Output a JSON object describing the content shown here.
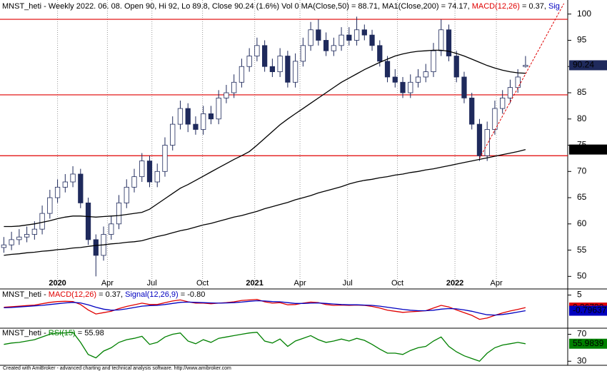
{
  "chart_data": [
    {
      "type": "candlestick",
      "title_parts": [
        {
          "text": "MNST_heti - Weekly 2022. 06. 08. Open 90, Hi 92, Lo 89.8, Close 90.24 (1.6%) Vol 0 MA(Close,50) = 88.71, MA1(Close,200) = 74.17, ",
          "color": "#000000"
        },
        {
          "text": "MACD(12,26)",
          "color": "#e00000"
        },
        {
          "text": " = 0.37, ",
          "color": "#000000"
        },
        {
          "text": "Sig",
          "color": "#0000c0"
        }
      ],
      "open": [
        55.5,
        56,
        57,
        57.5,
        58,
        59,
        62,
        65,
        67,
        68,
        69.5,
        64,
        57,
        54,
        58,
        60,
        64,
        67,
        69,
        72,
        68,
        70,
        75,
        79,
        82,
        79,
        78,
        81,
        80,
        84,
        85,
        87,
        90,
        92,
        94,
        90,
        89,
        92,
        87,
        91,
        94,
        97,
        95,
        93,
        94,
        96,
        95,
        97,
        96,
        94,
        91,
        88,
        87,
        85,
        87,
        88,
        89,
        93,
        97,
        92,
        88,
        84,
        79,
        73,
        78,
        82,
        84,
        86,
        90
      ],
      "high": [
        57.5,
        58.5,
        59,
        59.5,
        60.5,
        63.5,
        66.5,
        68.5,
        69.5,
        71,
        70.5,
        65,
        58,
        59.5,
        61.5,
        65.5,
        68.5,
        70.5,
        73.5,
        73,
        71.5,
        76.5,
        80.5,
        83.5,
        83,
        80.5,
        82.5,
        82.5,
        85.5,
        86.5,
        88.5,
        91.5,
        93.5,
        95.5,
        95,
        91.5,
        93.5,
        93,
        92.5,
        95.5,
        98.5,
        99,
        96.5,
        95.5,
        97.5,
        97.5,
        99.5,
        98,
        97,
        95,
        92,
        89.5,
        88,
        88.5,
        89.5,
        90.5,
        94.5,
        99,
        98,
        93,
        89,
        85,
        80,
        79.5,
        83.5,
        85.5,
        87.5,
        89.5,
        92
      ],
      "low": [
        54.5,
        55,
        56,
        56.5,
        57,
        58,
        61,
        64,
        66,
        67,
        63,
        56,
        50,
        53,
        57,
        59,
        63,
        66,
        68,
        67,
        67,
        69,
        74,
        78,
        77.5,
        77,
        77,
        79,
        79,
        83,
        84,
        86,
        89,
        91,
        89,
        88,
        88,
        86,
        86,
        90,
        93,
        94,
        92,
        92,
        93,
        94,
        94,
        95,
        93,
        90,
        87,
        86,
        84,
        84,
        86,
        87,
        88,
        92,
        91,
        87,
        83,
        78,
        72,
        72,
        77,
        81,
        83,
        85,
        89.8
      ],
      "close": [
        56,
        57,
        57.5,
        58,
        59,
        62,
        65,
        67,
        68,
        69.5,
        64,
        57,
        54,
        58,
        60,
        64,
        67,
        69,
        72,
        68,
        70,
        75,
        79,
        82,
        79,
        78,
        81,
        80,
        84,
        85,
        87,
        90,
        92,
        94,
        90,
        89,
        92,
        87,
        91,
        94,
        97,
        95,
        93,
        94,
        96,
        95,
        97,
        96,
        94,
        91,
        88,
        87,
        85,
        87,
        88,
        89,
        93,
        97,
        92,
        88,
        84,
        79,
        73,
        78,
        82,
        84,
        86,
        88,
        90.24
      ],
      "up_color": "#ffffff",
      "down_color": "#1f2a5c",
      "edge_color": "#1f2a5c",
      "series": [
        {
          "color": "#000000",
          "values": [
            59.5,
            59.5,
            59.6,
            59.8,
            60,
            60.3,
            60.6,
            61,
            61.3,
            61.5,
            61.5,
            61.4,
            61.3,
            61.4,
            61.5,
            61.6,
            61.8,
            62,
            62.2,
            62.8,
            63.8,
            64.8,
            65.8,
            66.8,
            67.5,
            68.3,
            69.1,
            69.9,
            70.7,
            71.5,
            72.3,
            73,
            73.8,
            75,
            76.3,
            77.6,
            78.9,
            80,
            81,
            82,
            83,
            84,
            85,
            86,
            87,
            87.8,
            88.6,
            89.4,
            90.1,
            90.8,
            91.4,
            92,
            92.4,
            92.7,
            92.9,
            93,
            93.1,
            93.1,
            92.9,
            92.5,
            92,
            91.4,
            90.8,
            90.2,
            89.7,
            89.3,
            89,
            88.8,
            88.71
          ]
        },
        {
          "color": "#000000",
          "values": [
            54,
            54.2,
            54.3,
            54.5,
            54.6,
            54.8,
            54.9,
            55.1,
            55.2,
            55.4,
            55.5,
            55.7,
            55.9,
            56,
            56.2,
            56.3,
            56.5,
            56.6,
            56.8,
            57.2,
            57.6,
            57.9,
            58.3,
            58.7,
            59,
            59.4,
            59.8,
            60.1,
            60.5,
            60.9,
            61.3,
            61.6,
            62,
            62.4,
            62.9,
            63.3,
            63.7,
            64.1,
            64.6,
            65,
            65.4,
            65.9,
            66.3,
            66.7,
            67.1,
            67.6,
            68,
            68.3,
            68.5,
            68.8,
            69,
            69.3,
            69.5,
            69.8,
            70,
            70.3,
            70.5,
            70.8,
            71.1,
            71.4,
            71.7,
            72,
            72.3,
            72.6,
            72.9,
            73.2,
            73.5,
            73.8,
            74.1731
          ]
        }
      ],
      "hlines": [
        {
          "value": 99,
          "color": "#e00000"
        },
        {
          "value": 84.6,
          "color": "#e00000"
        },
        {
          "value": 73,
          "color": "#e00000"
        }
      ],
      "trendline": {
        "x": [
          62,
          73
        ],
        "values": [
          72.5,
          102
        ],
        "color": "#e00000"
      },
      "xlim": [
        -0.5,
        73.5
      ],
      "xticks": [
        {
          "value": 7,
          "label": "2020"
        },
        {
          "value": 13.5,
          "label": "Apr"
        },
        {
          "value": 19.3,
          "label": "Jul"
        },
        {
          "value": 25.9,
          "label": "Oct"
        },
        {
          "value": 32.7,
          "label": "2021"
        },
        {
          "value": 38.6,
          "label": "Apr"
        },
        {
          "value": 44.8,
          "label": "Jul"
        },
        {
          "value": 51.3,
          "label": "Oct"
        },
        {
          "value": 58.8,
          "label": "2022"
        },
        {
          "value": 64.2,
          "label": "Apr"
        }
      ],
      "ylim": [
        47.6,
        102
      ],
      "yticks": [
        50,
        55,
        60,
        65,
        70,
        75,
        80,
        85,
        90,
        95,
        100
      ]
    },
    {
      "type": "line",
      "title_parts": [
        {
          "text": "MNST_heti - ",
          "color": "#000000"
        },
        {
          "text": "MACD(12,26)",
          "color": "#e00000"
        },
        {
          "text": " = 0.37, ",
          "color": "#000000"
        },
        {
          "text": "Signal(12,26,9)",
          "color": "#0000c0"
        },
        {
          "text": " = -0.80",
          "color": "#000000"
        }
      ],
      "series": [
        {
          "color": "#e00000",
          "end_label": "0.36730",
          "values": [
            0.5,
            0.7,
            0.9,
            1.1,
            1.3,
            1.8,
            2.3,
            2.6,
            2.7,
            2.6,
            1.5,
            -0.5,
            -2,
            -1.5,
            -1,
            0,
            0.8,
            1.4,
            2,
            1.5,
            1.5,
            2.2,
            2.8,
            3.2,
            2.5,
            2,
            2,
            1.8,
            2,
            2.2,
            2.5,
            3,
            3.2,
            3.4,
            2.5,
            2,
            2.2,
            1.4,
            1.5,
            2,
            2.4,
            2.2,
            1.5,
            1.2,
            1.3,
            1.2,
            1.3,
            1.2,
            0.8,
            0.2,
            -0.6,
            -1,
            -1.4,
            -1.2,
            -1,
            -0.8,
            0.2,
            1.2,
            0.6,
            -0.5,
            -1.5,
            -2.5,
            -4,
            -3.5,
            -2.5,
            -1.6,
            -0.9,
            -0.3,
            0.3673
          ]
        },
        {
          "color": "#0000c0",
          "values": [
            0.3,
            0.4,
            0.6,
            0.8,
            1,
            1.2,
            1.5,
            1.8,
            2.1,
            2.3,
            2.1,
            1.4,
            0.5,
            -0.2,
            -0.6,
            -0.5,
            -0.1,
            0.4,
            0.9,
            1.1,
            1.2,
            1.5,
            1.9,
            2.3,
            2.4,
            2.3,
            2.2,
            2.1,
            2,
            2.1,
            2.2,
            2.4,
            2.7,
            2.9,
            2.8,
            2.6,
            2.5,
            2.2,
            1.9,
            1.9,
            2,
            2.1,
            1.9,
            1.7,
            1.5,
            1.4,
            1.4,
            1.3,
            1.2,
            0.9,
            0.5,
            0.1,
            -0.3,
            -0.6,
            -0.8,
            -0.8,
            -0.6,
            -0.2,
            0,
            -0.1,
            -0.5,
            -1,
            -1.7,
            -2.3,
            -2.4,
            -2.2,
            -1.8,
            -1.3,
            -0.79637
          ]
        }
      ],
      "ylim": [
        -7,
        7
      ],
      "yticks": [
        5
      ]
    },
    {
      "type": "line",
      "title_parts": [
        {
          "text": "MNST_heti - ",
          "color": "#000000"
        },
        {
          "text": "RSI(15)",
          "color": "#008000"
        },
        {
          "text": " = 55.98",
          "color": "#000000"
        }
      ],
      "series": [
        {
          "color": "#008000",
          "values": [
            55,
            57,
            58,
            60,
            62,
            66,
            70,
            72,
            72,
            73,
            58,
            40,
            35,
            45,
            50,
            58,
            62,
            64,
            67,
            55,
            58,
            66,
            70,
            72,
            60,
            56,
            62,
            58,
            64,
            66,
            68,
            70,
            72,
            73,
            60,
            57,
            63,
            52,
            60,
            64,
            68,
            62,
            58,
            60,
            63,
            60,
            64,
            61,
            55,
            48,
            42,
            42,
            40,
            46,
            50,
            52,
            60,
            66,
            52,
            44,
            38,
            34,
            30,
            42,
            50,
            54,
            56,
            58,
            55.9839
          ]
        }
      ],
      "ylim": [
        25,
        78
      ],
      "yticks": [
        70,
        30
      ]
    }
  ],
  "footer": "Created with AmiBroker - advanced charting and technical analysis software. http://www.amibroker.com"
}
